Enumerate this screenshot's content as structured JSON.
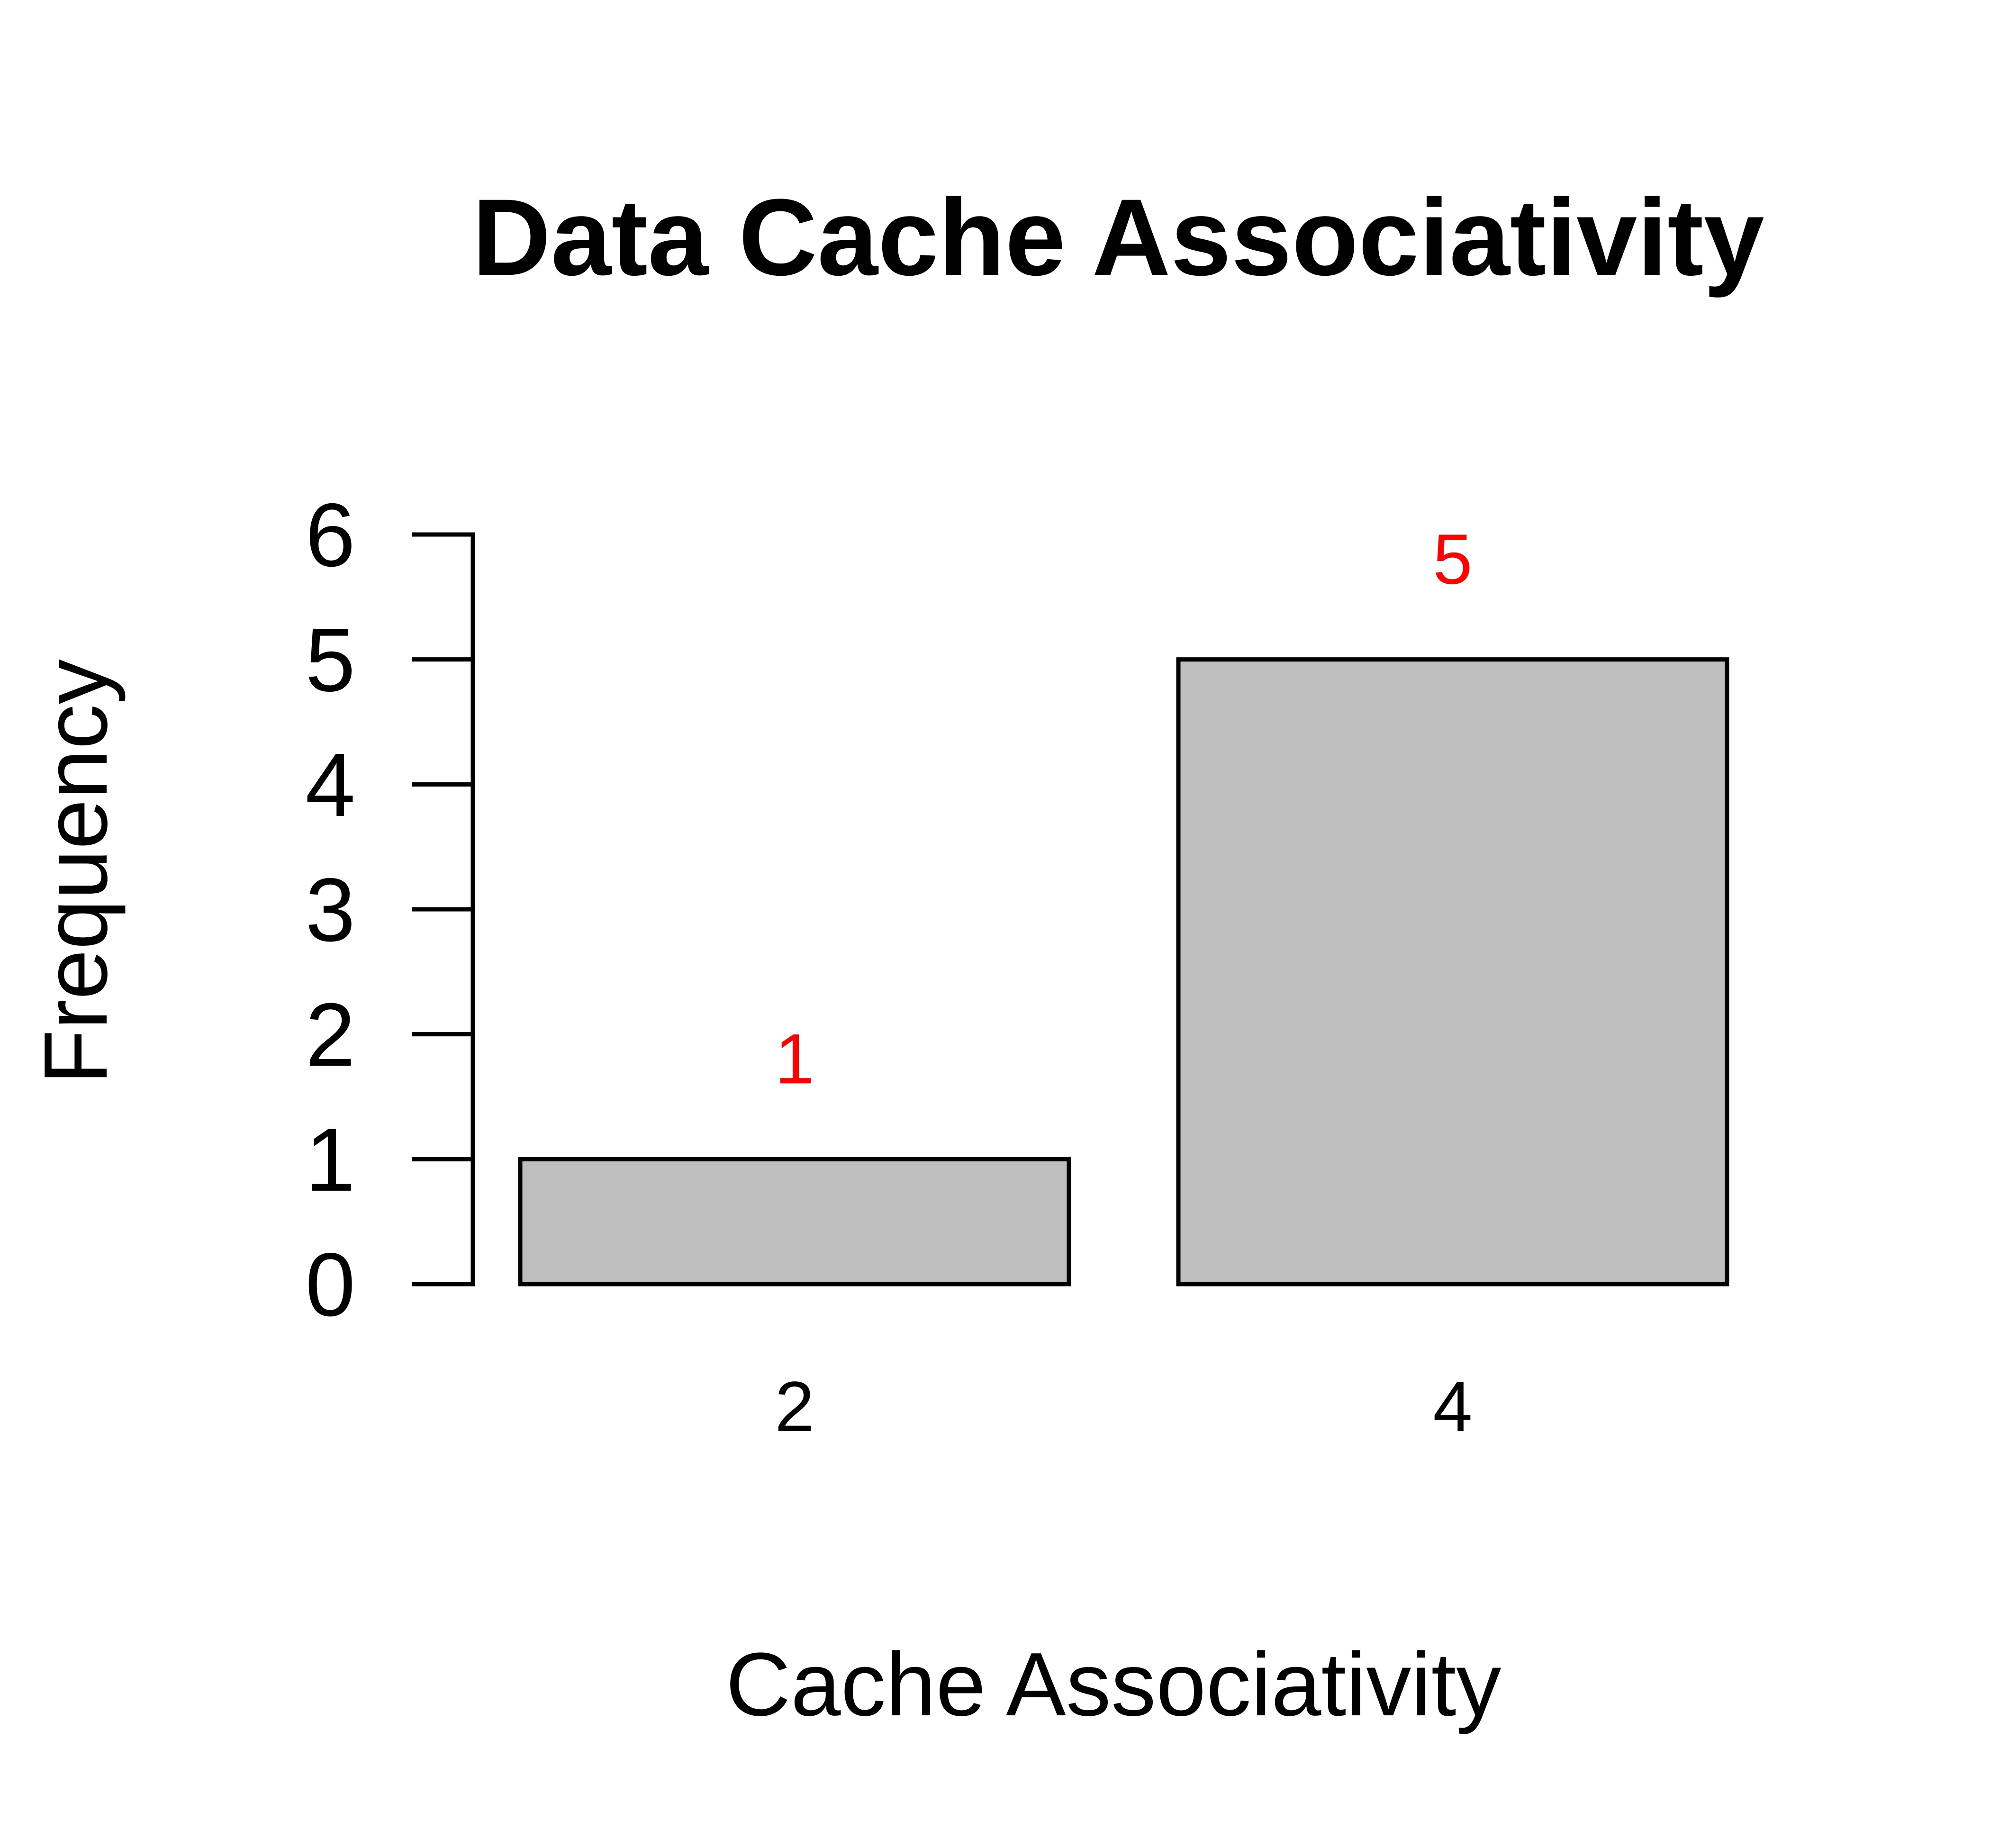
{
  "chart_data": {
    "type": "bar",
    "title": "Data Cache Associativity",
    "xlabel": "Cache Associativity",
    "ylabel": "Frequency",
    "categories": [
      "2",
      "4"
    ],
    "values": [
      1,
      5
    ],
    "value_labels": [
      "1",
      "5"
    ],
    "ylim": [
      0,
      6
    ],
    "yticks": [
      0,
      1,
      2,
      3,
      4,
      5,
      6
    ],
    "ytick_labels": [
      "0",
      "1",
      "2",
      "3",
      "4",
      "5",
      "6"
    ],
    "grid": false,
    "colors": {
      "bar_fill": "#bebebe",
      "bar_stroke": "#000000",
      "value_label": "#ff0000",
      "text": "#000000"
    }
  }
}
